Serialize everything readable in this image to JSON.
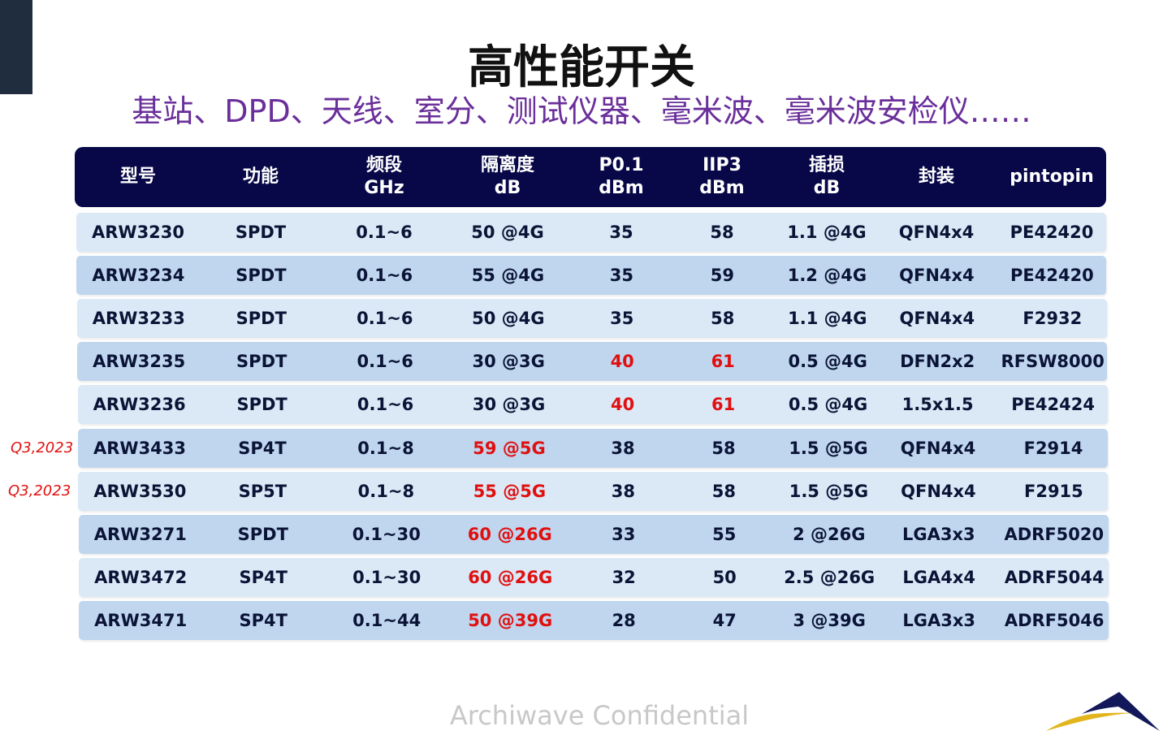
{
  "title": "高性能开关",
  "subtitle": "基站、DPD、天线、室分、测试仪器、毫米波、毫米波安检仪……",
  "table": {
    "headers": [
      [
        "型号",
        ""
      ],
      [
        "功能",
        ""
      ],
      [
        "频段",
        "GHz"
      ],
      [
        "隔离度",
        "dB"
      ],
      [
        "P0.1",
        "dBm"
      ],
      [
        "IIP3",
        "dBm"
      ],
      [
        "插损",
        "dB"
      ],
      [
        "封装",
        ""
      ],
      [
        "pintopin",
        ""
      ]
    ],
    "rows": [
      {
        "cells": [
          "ARW3230",
          "SPDT",
          "0.1~6",
          "50 @4G",
          "35",
          "58",
          "1.1 @4G",
          "QFN4x4",
          "PE42420"
        ],
        "red": []
      },
      {
        "cells": [
          "ARW3234",
          "SPDT",
          "0.1~6",
          "55 @4G",
          "35",
          "59",
          "1.2 @4G",
          "QFN4x4",
          "PE42420"
        ],
        "red": []
      },
      {
        "cells": [
          "ARW3233",
          "SPDT",
          "0.1~6",
          "50 @4G",
          "35",
          "58",
          "1.1 @4G",
          "QFN4x4",
          "F2932"
        ],
        "red": []
      },
      {
        "cells": [
          "ARW3235",
          "SPDT",
          "0.1~6",
          "30 @3G",
          "40",
          "61",
          "0.5 @4G",
          "DFN2x2",
          "RFSW8000"
        ],
        "red": [
          4,
          5
        ]
      },
      {
        "cells": [
          "ARW3236",
          "SPDT",
          "0.1~6",
          "30 @3G",
          "40",
          "61",
          "0.5 @4G",
          "1.5x1.5",
          "PE42424"
        ],
        "red": [
          4,
          5
        ]
      },
      {
        "cells": [
          "ARW3433",
          "SP4T",
          "0.1~8",
          "59 @5G",
          "38",
          "58",
          "1.5 @5G",
          "QFN4x4",
          "F2914"
        ],
        "red": [
          3
        ],
        "note": "Q3,2023"
      },
      {
        "cells": [
          "ARW3530",
          "SP5T",
          "0.1~8",
          "55 @5G",
          "38",
          "58",
          "1.5 @5G",
          "QFN4x4",
          "F2915"
        ],
        "red": [
          3
        ],
        "note": "Q3,2023"
      },
      {
        "cells": [
          "ARW3271",
          "SPDT",
          "0.1~30",
          "60 @26G",
          "33",
          "55",
          "2 @26G",
          "LGA3x3",
          "ADRF5020"
        ],
        "red": [
          3
        ]
      },
      {
        "cells": [
          "ARW3472",
          "SP4T",
          "0.1~30",
          "60 @26G",
          "32",
          "50",
          "2.5 @26G",
          "LGA4x4",
          "ADRF5044"
        ],
        "red": [
          3
        ]
      },
      {
        "cells": [
          "ARW3471",
          "SP4T",
          "0.1~44",
          "50 @39G",
          "28",
          "47",
          "3 @39G",
          "LGA3x3",
          "ADRF5046"
        ],
        "red": [
          3
        ]
      }
    ]
  },
  "footer": "Archiwave Confidential",
  "colors": {
    "header": "#080848",
    "row_light": "#dbe8f6",
    "row_dark": "#bfd6ee",
    "highlight": "#e01010",
    "subtitle": "#6a2f9a"
  }
}
